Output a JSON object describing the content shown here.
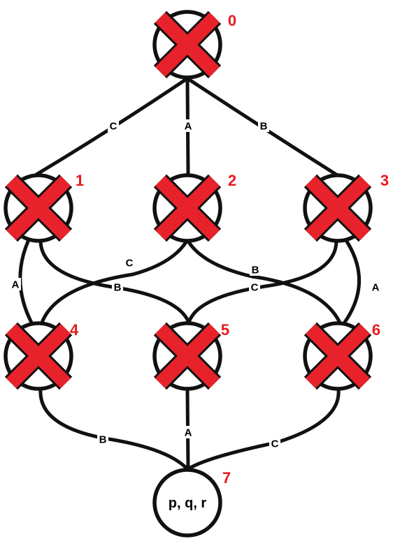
{
  "colors": {
    "stroke": "#111111",
    "cross": "#e8222a",
    "number": "#e8191f"
  },
  "nodes": [
    {
      "id": "0",
      "crossed": true,
      "text": ""
    },
    {
      "id": "1",
      "crossed": true,
      "text": ""
    },
    {
      "id": "2",
      "crossed": true,
      "text": ""
    },
    {
      "id": "3",
      "crossed": true,
      "text": ""
    },
    {
      "id": "4",
      "crossed": true,
      "text": ""
    },
    {
      "id": "5",
      "crossed": true,
      "text": ""
    },
    {
      "id": "6",
      "crossed": true,
      "text": ""
    },
    {
      "id": "7",
      "crossed": false,
      "text": "p, q, r"
    }
  ],
  "edges": [
    {
      "from": "0",
      "to": "1",
      "label": "C"
    },
    {
      "from": "0",
      "to": "2",
      "label": "A"
    },
    {
      "from": "0",
      "to": "3",
      "label": "B"
    },
    {
      "from": "1",
      "to": "4",
      "label": "A"
    },
    {
      "from": "2",
      "to": "4",
      "label": "C"
    },
    {
      "from": "1",
      "to": "5",
      "label": "B"
    },
    {
      "from": "2",
      "to": "6",
      "label": "B"
    },
    {
      "from": "3",
      "to": "5",
      "label": "C"
    },
    {
      "from": "3",
      "to": "6",
      "label": "A"
    },
    {
      "from": "4",
      "to": "7",
      "label": "B"
    },
    {
      "from": "5",
      "to": "7",
      "label": "A"
    },
    {
      "from": "6",
      "to": "7",
      "label": "C"
    }
  ]
}
